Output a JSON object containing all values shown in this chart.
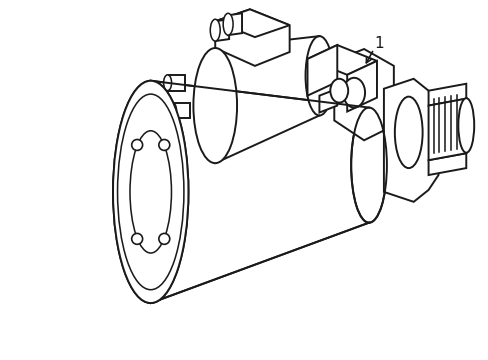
{
  "background_color": "#ffffff",
  "line_color": "#1a1a1a",
  "line_width": 1.4,
  "label_text": "1",
  "figsize": [
    4.89,
    3.6
  ],
  "dpi": 100
}
